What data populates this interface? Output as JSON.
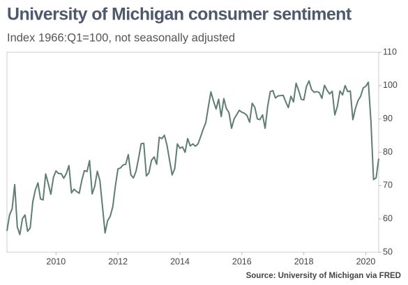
{
  "chart_data": {
    "type": "line",
    "title": "University of Michigan consumer sentiment",
    "subtitle": "Index 1966:Q1=100, not seasonally adjusted",
    "source": "Source: University of Michigan via FRED",
    "color": "#5e7d72",
    "x": [
      2008.417,
      2008.5,
      2008.583,
      2008.667,
      2008.75,
      2008.833,
      2008.917,
      2009,
      2009.083,
      2009.167,
      2009.25,
      2009.333,
      2009.417,
      2009.5,
      2009.583,
      2009.667,
      2009.75,
      2009.833,
      2009.917,
      2010,
      2010.083,
      2010.167,
      2010.25,
      2010.333,
      2010.417,
      2010.5,
      2010.583,
      2010.667,
      2010.75,
      2010.833,
      2010.917,
      2011,
      2011.083,
      2011.167,
      2011.25,
      2011.333,
      2011.417,
      2011.5,
      2011.583,
      2011.667,
      2011.75,
      2011.833,
      2011.917,
      2012,
      2012.083,
      2012.167,
      2012.25,
      2012.333,
      2012.417,
      2012.5,
      2012.583,
      2012.667,
      2012.75,
      2012.833,
      2012.917,
      2013,
      2013.083,
      2013.167,
      2013.25,
      2013.333,
      2013.417,
      2013.5,
      2013.583,
      2013.667,
      2013.75,
      2013.833,
      2013.917,
      2014,
      2014.083,
      2014.167,
      2014.25,
      2014.333,
      2014.417,
      2014.5,
      2014.583,
      2014.667,
      2014.75,
      2014.833,
      2014.917,
      2015,
      2015.083,
      2015.167,
      2015.25,
      2015.333,
      2015.417,
      2015.5,
      2015.583,
      2015.667,
      2015.75,
      2015.833,
      2015.917,
      2016,
      2016.083,
      2016.167,
      2016.25,
      2016.333,
      2016.417,
      2016.5,
      2016.583,
      2016.667,
      2016.75,
      2016.833,
      2016.917,
      2017,
      2017.083,
      2017.167,
      2017.25,
      2017.333,
      2017.417,
      2017.5,
      2017.583,
      2017.667,
      2017.75,
      2017.833,
      2017.917,
      2018,
      2018.083,
      2018.167,
      2018.25,
      2018.333,
      2018.417,
      2018.5,
      2018.583,
      2018.667,
      2018.75,
      2018.833,
      2018.917,
      2019,
      2019.083,
      2019.167,
      2019.25,
      2019.333,
      2019.417,
      2019.5,
      2019.583,
      2019.667,
      2019.75,
      2019.833,
      2019.917,
      2020,
      2020.083,
      2020.167,
      2020.25,
      2020.333,
      2020.417
    ],
    "values": [
      56.4,
      61.2,
      63.0,
      70.3,
      57.6,
      55.3,
      60.1,
      61.2,
      56.3,
      57.3,
      65.1,
      68.7,
      70.8,
      66.0,
      65.7,
      73.5,
      70.6,
      67.4,
      72.5,
      74.4,
      73.6,
      73.6,
      72.2,
      73.6,
      76.0,
      67.8,
      68.9,
      68.2,
      67.7,
      71.6,
      74.5,
      74.2,
      77.5,
      67.5,
      69.8,
      74.3,
      71.5,
      63.7,
      55.8,
      59.5,
      60.8,
      63.7,
      69.9,
      75.0,
      75.3,
      76.2,
      76.4,
      79.3,
      73.2,
      72.3,
      74.3,
      78.3,
      82.6,
      82.7,
      72.9,
      73.8,
      77.6,
      78.6,
      76.4,
      84.5,
      84.1,
      85.1,
      82.1,
      77.5,
      73.2,
      75.1,
      82.5,
      81.2,
      81.6,
      80.0,
      84.1,
      81.9,
      82.5,
      81.8,
      82.5,
      84.6,
      86.9,
      88.8,
      93.6,
      98.1,
      95.4,
      93.0,
      95.9,
      90.7,
      96.1,
      93.1,
      91.9,
      87.2,
      90.0,
      91.3,
      92.6,
      92.0,
      91.7,
      91.0,
      89.0,
      94.7,
      93.5,
      90.0,
      89.8,
      91.2,
      87.2,
      93.8,
      98.2,
      98.5,
      96.3,
      96.9,
      97.0,
      97.1,
      95.1,
      93.4,
      96.8,
      95.1,
      100.7,
      98.5,
      95.9,
      95.7,
      99.7,
      101.4,
      98.8,
      98.0,
      98.2,
      97.9,
      96.2,
      100.1,
      98.6,
      97.5,
      98.3,
      91.2,
      93.8,
      98.4,
      97.2,
      100.0,
      98.2,
      98.4,
      89.8,
      93.2,
      95.5,
      96.8,
      99.3,
      99.8,
      101.0,
      89.1,
      71.8,
      72.3,
      78.1
    ],
    "xlim": [
      2008.417,
      2020.417
    ],
    "ylim": [
      50,
      110
    ],
    "xticks": [
      2010,
      2012,
      2014,
      2016,
      2018,
      2020
    ],
    "yticks": [
      50,
      60,
      70,
      80,
      90,
      100,
      110
    ]
  }
}
